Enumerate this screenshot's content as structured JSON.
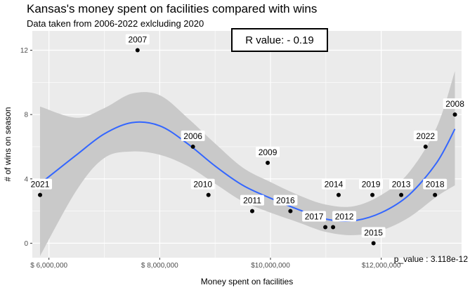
{
  "chart_data": {
    "type": "scatter",
    "title": "Kansas's money spent on facilities compared with wins",
    "subtitle": "Data taken from 2006-2022 exlcluding 2020",
    "xlabel": "Money spent on facilities",
    "ylabel": "# of wins on season",
    "xlim": [
      5700000,
      13450000
    ],
    "ylim": [
      -0.9,
      13.2
    ],
    "x_ticks": [
      6000000,
      8000000,
      10000000,
      12000000
    ],
    "x_tick_labels": [
      "$ 6,000,000",
      "$ 8,000,000",
      "$10,000,000",
      "$12,000,000"
    ],
    "y_ticks": [
      0,
      4,
      8,
      12
    ],
    "y_tick_labels": [
      "0",
      "4",
      "8",
      "12"
    ],
    "grid": true,
    "points": [
      {
        "label": "2006",
        "x": 8600000,
        "y": 6
      },
      {
        "label": "2007",
        "x": 7600000,
        "y": 12
      },
      {
        "label": "2008",
        "x": 13330000,
        "y": 8
      },
      {
        "label": "2009",
        "x": 9950000,
        "y": 5
      },
      {
        "label": "2010",
        "x": 8880000,
        "y": 3
      },
      {
        "label": "2011",
        "x": 9670000,
        "y": 2
      },
      {
        "label": "2012",
        "x": 11130000,
        "y": 1
      },
      {
        "label": "2013",
        "x": 12360000,
        "y": 3
      },
      {
        "label": "2014",
        "x": 11230000,
        "y": 3
      },
      {
        "label": "2015",
        "x": 11860000,
        "y": 0
      },
      {
        "label": "2016",
        "x": 10360000,
        "y": 2
      },
      {
        "label": "2017",
        "x": 10990000,
        "y": 1
      },
      {
        "label": "2018",
        "x": 12970000,
        "y": 3
      },
      {
        "label": "2019",
        "x": 11840000,
        "y": 3
      },
      {
        "label": "2021",
        "x": 5840000,
        "y": 3
      },
      {
        "label": "2022",
        "x": 12800000,
        "y": 6
      }
    ],
    "smooth": {
      "x": [
        5840000,
        6500000,
        7000000,
        7500000,
        8000000,
        8500000,
        9000000,
        9500000,
        10000000,
        10500000,
        11000000,
        11500000,
        12000000,
        12500000,
        13000000,
        13330000
      ],
      "y": [
        3.7,
        5.5,
        6.8,
        7.5,
        7.3,
        6.2,
        4.8,
        3.6,
        2.8,
        2.1,
        1.5,
        1.4,
        1.9,
        3.0,
        5.0,
        7.1
      ],
      "lower": [
        -0.8,
        3.3,
        5.3,
        5.7,
        5.5,
        4.8,
        3.7,
        2.6,
        1.9,
        1.3,
        0.7,
        0.5,
        0.8,
        1.6,
        2.9,
        3.6
      ],
      "upper": [
        8.5,
        7.8,
        8.4,
        9.3,
        9.2,
        7.8,
        6.2,
        4.7,
        3.8,
        3.0,
        2.4,
        2.3,
        3.0,
        4.4,
        7.2,
        10.7
      ]
    },
    "annotation_r": "R value: - 0.19",
    "annotation_p": "p_value : 3.118e-12",
    "colors": {
      "panel": "#ebebeb",
      "grid": "#ffffff",
      "band": "#c9c9c9",
      "line": "#3366ff",
      "point": "#000000"
    }
  }
}
